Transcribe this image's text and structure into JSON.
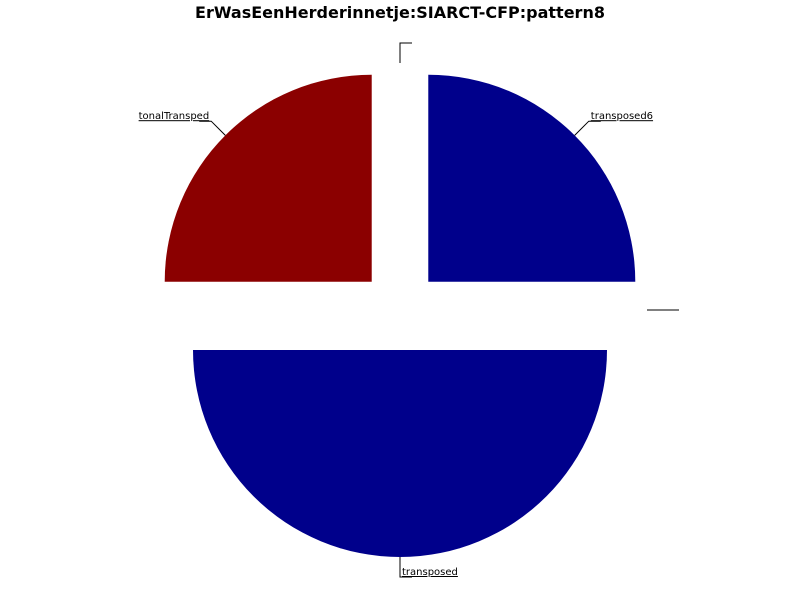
{
  "chart_data": {
    "type": "pie",
    "title": "ErWasEenHerderinnetje:SIARCT-CFP:pattern8",
    "legend": "none",
    "slices": [
      {
        "label": "transposed6",
        "value": 25,
        "color": "#00008b",
        "exploded": true
      },
      {
        "label": "",
        "value": 0,
        "color": "#00008b",
        "exploded": true
      },
      {
        "label": "transposed",
        "value": 50,
        "color": "#00008b",
        "exploded": true
      },
      {
        "label": "tonalTransped",
        "value": 25,
        "color": "#8b0000",
        "exploded": true
      },
      {
        "label": "",
        "value": 0,
        "color": "#8b0000",
        "exploded": true
      }
    ]
  }
}
